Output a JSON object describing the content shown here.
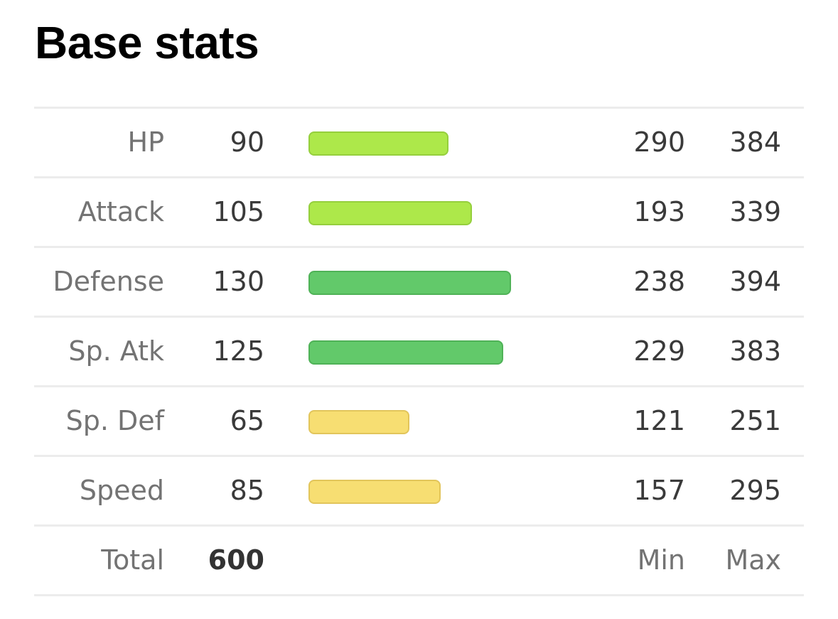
{
  "title": "Base stats",
  "colors": {
    "bar_fill_high": "#62c96a",
    "bar_border_high": "#4fb257",
    "bar_fill_mid": "#ade84a",
    "bar_border_mid": "#95cf3d",
    "bar_fill_low": "#f7de72",
    "bar_border_low": "#e2c55b"
  },
  "stats": [
    {
      "name": "HP",
      "base": "90",
      "min": "290",
      "max": "384",
      "level": "mid"
    },
    {
      "name": "Attack",
      "base": "105",
      "min": "193",
      "max": "339",
      "level": "mid"
    },
    {
      "name": "Defense",
      "base": "130",
      "min": "238",
      "max": "394",
      "level": "high"
    },
    {
      "name": "Sp. Atk",
      "base": "125",
      "min": "229",
      "max": "383",
      "level": "high"
    },
    {
      "name": "Sp. Def",
      "base": "65",
      "min": "121",
      "max": "251",
      "level": "low"
    },
    {
      "name": "Speed",
      "base": "85",
      "min": "157",
      "max": "295",
      "level": "low"
    }
  ],
  "total": {
    "label": "Total",
    "value": "600",
    "min_header": "Min",
    "max_header": "Max"
  }
}
